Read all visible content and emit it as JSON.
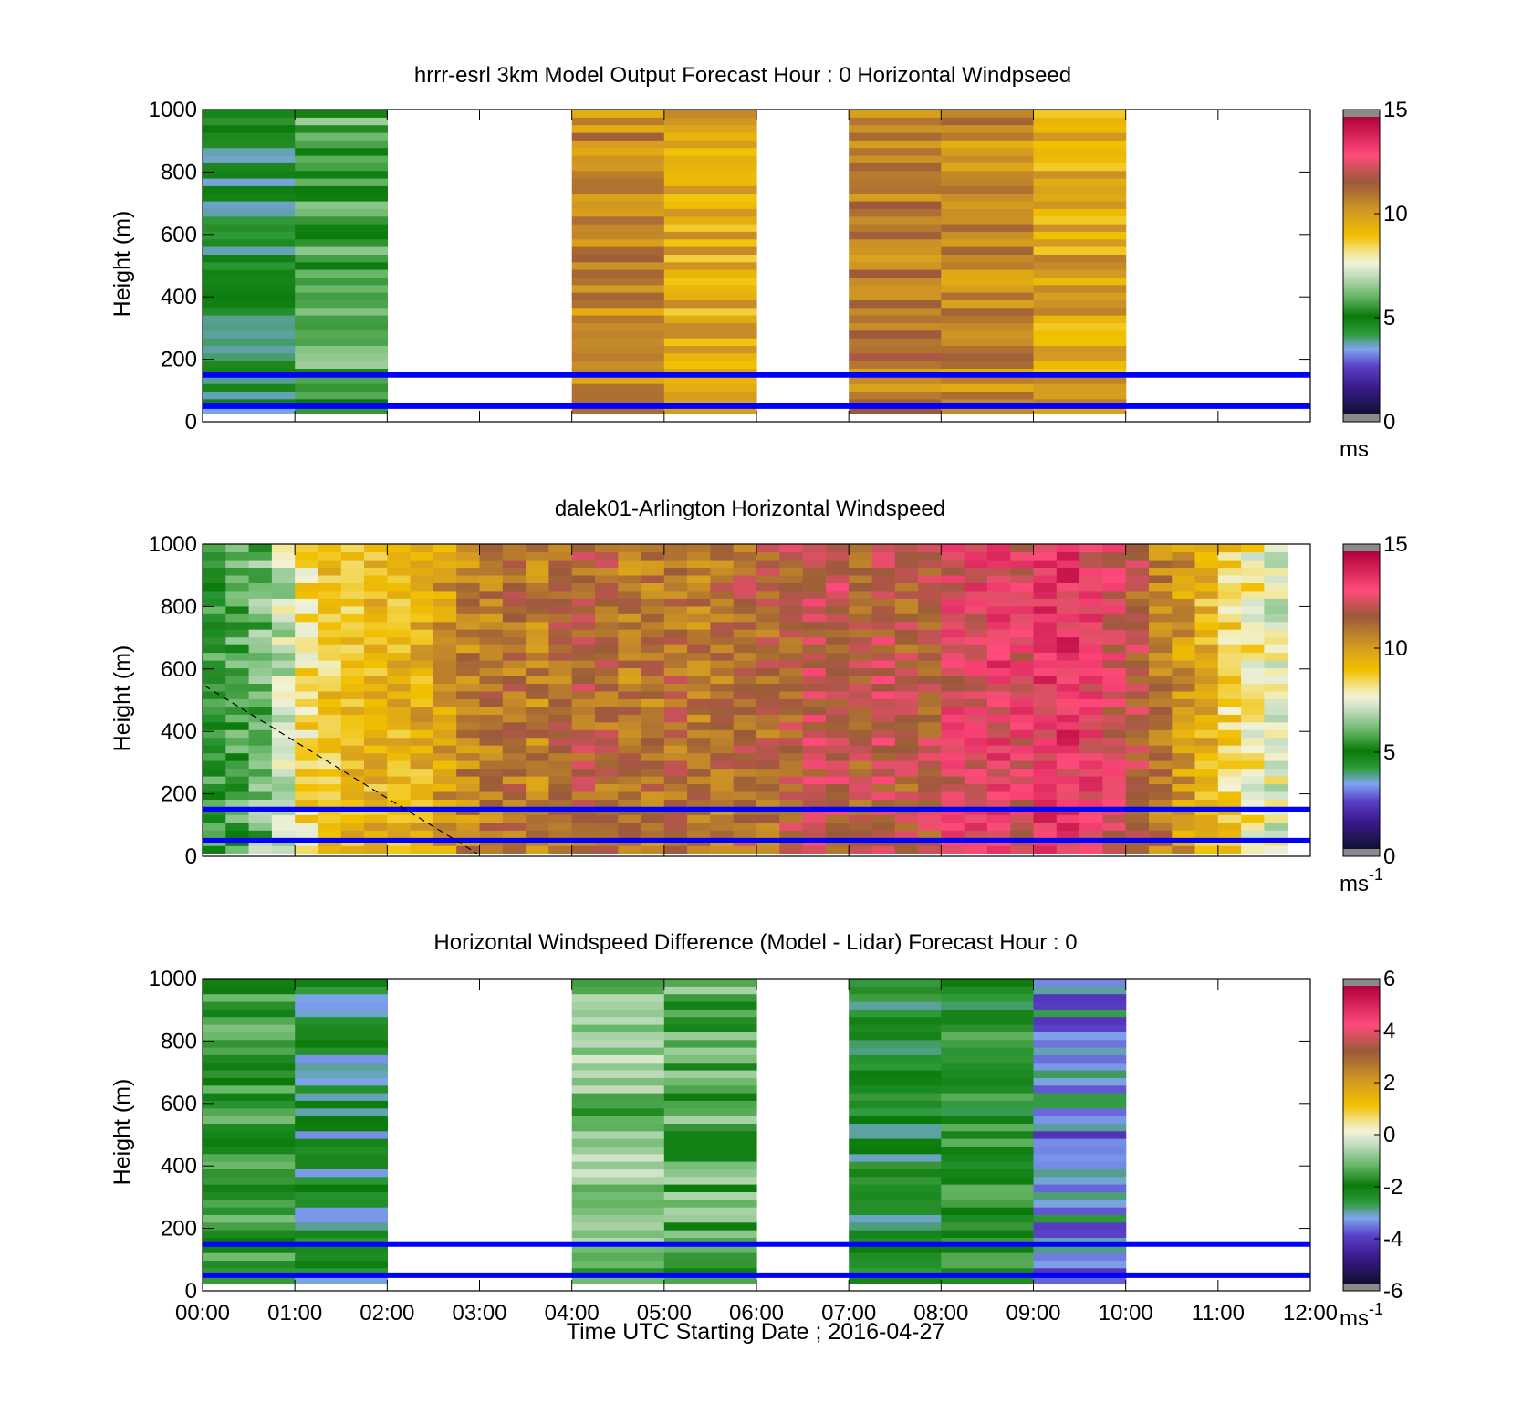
{
  "chart_data": [
    {
      "type": "heatmap",
      "title": "hrrr-esrl 3km Model Output   Forecast Hour : 0 Horizontal Windpseed",
      "ylabel": "Height (m)",
      "xlabel": "",
      "ylim": [
        0,
        1000
      ],
      "yticks": [
        "0",
        "200",
        "400",
        "600",
        "800",
        "1000"
      ],
      "xlim_hours": [
        0,
        12
      ],
      "xticks": [],
      "colorbar": {
        "min": 0,
        "max": 15,
        "ticks": [
          "0",
          "5",
          "10",
          "15"
        ],
        "unit": "ms",
        "unit_sup": "",
        "palette": "speed"
      },
      "reference_lines_m": [
        50,
        150
      ],
      "columns": [
        {
          "t0": 0,
          "t1": 1,
          "z0": 25,
          "z1": 1000,
          "value": 4.4
        },
        {
          "t0": 1,
          "t1": 2,
          "z0": 25,
          "z1": 1000,
          "value": 5.8
        },
        {
          "t0": 4,
          "t1": 5,
          "z0": 25,
          "z1": 1000,
          "value": 10.6
        },
        {
          "t0": 5,
          "t1": 6,
          "z0": 25,
          "z1": 1000,
          "value": 9.6
        },
        {
          "t0": 7,
          "t1": 8,
          "z0": 25,
          "z1": 1000,
          "value": 10.9
        },
        {
          "t0": 8,
          "t1": 9,
          "z0": 25,
          "z1": 1000,
          "value": 10.5
        },
        {
          "t0": 9,
          "t1": 10,
          "z0": 25,
          "z1": 1000,
          "value": 9.8
        }
      ]
    },
    {
      "type": "heatmap",
      "title": "dalek01-Arlington  Horizontal Windspeed",
      "ylabel": "Height (m)",
      "xlabel": "",
      "ylim": [
        0,
        1000
      ],
      "yticks": [
        "0",
        "200",
        "400",
        "600",
        "800",
        "1000"
      ],
      "xlim_hours": [
        0,
        12
      ],
      "xticks": [],
      "colorbar": {
        "min": 0,
        "max": 15,
        "ticks": [
          "0",
          "5",
          "10",
          "15"
        ],
        "unit": "ms",
        "unit_sup": "-1",
        "palette": "speed"
      },
      "reference_lines_m": [
        50,
        150
      ],
      "columns": [
        {
          "t0": 0.0,
          "t1": 0.25,
          "z0": 10,
          "z1": 1000,
          "value": 5.2
        },
        {
          "t0": 0.25,
          "t1": 0.5,
          "z0": 10,
          "z1": 1000,
          "value": 5.6
        },
        {
          "t0": 0.5,
          "t1": 0.75,
          "z0": 10,
          "z1": 1000,
          "value": 6.2
        },
        {
          "t0": 0.75,
          "t1": 1.0,
          "z0": 10,
          "z1": 1000,
          "value": 7.1
        },
        {
          "t0": 1.0,
          "t1": 1.25,
          "z0": 10,
          "z1": 1000,
          "value": 8.4
        },
        {
          "t0": 1.25,
          "t1": 1.5,
          "z0": 10,
          "z1": 1000,
          "value": 8.9
        },
        {
          "t0": 1.5,
          "t1": 1.75,
          "z0": 10,
          "z1": 1000,
          "value": 9.2
        },
        {
          "t0": 1.75,
          "t1": 2.0,
          "z0": 10,
          "z1": 1000,
          "value": 9.4
        },
        {
          "t0": 2.0,
          "t1": 2.25,
          "z0": 10,
          "z1": 1000,
          "value": 9.3
        },
        {
          "t0": 2.25,
          "t1": 2.5,
          "z0": 10,
          "z1": 1000,
          "value": 9.6
        },
        {
          "t0": 2.5,
          "t1": 2.75,
          "z0": 10,
          "z1": 1000,
          "value": 10.1
        },
        {
          "t0": 2.75,
          "t1": 3.0,
          "z0": 10,
          "z1": 1000,
          "value": 10.6
        },
        {
          "t0": 3.0,
          "t1": 3.25,
          "z0": 10,
          "z1": 1000,
          "value": 11.0
        },
        {
          "t0": 3.25,
          "t1": 3.5,
          "z0": 10,
          "z1": 1000,
          "value": 11.2
        },
        {
          "t0": 3.5,
          "t1": 3.75,
          "z0": 10,
          "z1": 1000,
          "value": 10.8
        },
        {
          "t0": 3.75,
          "t1": 4.0,
          "z0": 10,
          "z1": 1000,
          "value": 11.3
        },
        {
          "t0": 4.0,
          "t1": 4.25,
          "z0": 10,
          "z1": 1000,
          "value": 11.6
        },
        {
          "t0": 4.25,
          "t1": 4.5,
          "z0": 10,
          "z1": 1000,
          "value": 11.4
        },
        {
          "t0": 4.5,
          "t1": 4.75,
          "z0": 10,
          "z1": 1000,
          "value": 10.9
        },
        {
          "t0": 4.75,
          "t1": 5.0,
          "z0": 10,
          "z1": 1000,
          "value": 11.1
        },
        {
          "t0": 5.0,
          "t1": 5.25,
          "z0": 10,
          "z1": 1000,
          "value": 11.3
        },
        {
          "t0": 5.25,
          "t1": 5.5,
          "z0": 10,
          "z1": 1000,
          "value": 10.9
        },
        {
          "t0": 5.5,
          "t1": 5.75,
          "z0": 10,
          "z1": 1000,
          "value": 11.2
        },
        {
          "t0": 5.75,
          "t1": 6.0,
          "z0": 10,
          "z1": 1000,
          "value": 11.5
        },
        {
          "t0": 6.0,
          "t1": 6.25,
          "z0": 10,
          "z1": 1000,
          "value": 11.4
        },
        {
          "t0": 6.25,
          "t1": 6.5,
          "z0": 10,
          "z1": 1000,
          "value": 11.8
        },
        {
          "t0": 6.5,
          "t1": 6.75,
          "z0": 10,
          "z1": 1000,
          "value": 12.2
        },
        {
          "t0": 6.75,
          "t1": 7.0,
          "z0": 10,
          "z1": 1000,
          "value": 12.0
        },
        {
          "t0": 7.0,
          "t1": 7.25,
          "z0": 10,
          "z1": 1000,
          "value": 11.6
        },
        {
          "t0": 7.25,
          "t1": 7.5,
          "z0": 10,
          "z1": 1000,
          "value": 12.1
        },
        {
          "t0": 7.5,
          "t1": 7.75,
          "z0": 10,
          "z1": 1000,
          "value": 11.7
        },
        {
          "t0": 7.75,
          "t1": 8.0,
          "z0": 10,
          "z1": 1000,
          "value": 11.9
        },
        {
          "t0": 8.0,
          "t1": 8.25,
          "z0": 10,
          "z1": 1000,
          "value": 12.7
        },
        {
          "t0": 8.25,
          "t1": 8.5,
          "z0": 10,
          "z1": 1000,
          "value": 12.9
        },
        {
          "t0": 8.5,
          "t1": 8.75,
          "z0": 10,
          "z1": 1000,
          "value": 13.1
        },
        {
          "t0": 8.75,
          "t1": 9.0,
          "z0": 10,
          "z1": 1000,
          "value": 12.8
        },
        {
          "t0": 9.0,
          "t1": 9.25,
          "z0": 10,
          "z1": 1000,
          "value": 13.3
        },
        {
          "t0": 9.25,
          "t1": 9.5,
          "z0": 10,
          "z1": 1000,
          "value": 13.4
        },
        {
          "t0": 9.5,
          "t1": 9.75,
          "z0": 10,
          "z1": 1000,
          "value": 13.0
        },
        {
          "t0": 9.75,
          "t1": 10.0,
          "z0": 10,
          "z1": 1000,
          "value": 12.4
        },
        {
          "t0": 10.0,
          "t1": 10.25,
          "z0": 10,
          "z1": 1000,
          "value": 11.8
        },
        {
          "t0": 10.25,
          "t1": 10.5,
          "z0": 10,
          "z1": 1000,
          "value": 10.9
        },
        {
          "t0": 10.5,
          "t1": 10.75,
          "z0": 10,
          "z1": 1000,
          "value": 10.2
        },
        {
          "t0": 10.75,
          "t1": 11.0,
          "z0": 10,
          "z1": 1000,
          "value": 9.4
        },
        {
          "t0": 11.0,
          "t1": 11.25,
          "z0": 10,
          "z1": 1000,
          "value": 8.6
        },
        {
          "t0": 11.25,
          "t1": 11.5,
          "z0": 10,
          "z1": 1000,
          "value": 8.0
        },
        {
          "t0": 11.5,
          "t1": 11.75,
          "z0": 10,
          "z1": 1000,
          "value": 7.5
        }
      ]
    },
    {
      "type": "heatmap",
      "title": "Horizontal Windspeed Difference (Model - Lidar) Forecast Hour : 0",
      "ylabel": "Height (m)",
      "xlabel": "Time UTC  Starting Date ; 2016-04-27",
      "ylim": [
        0,
        1000
      ],
      "yticks": [
        "0",
        "200",
        "400",
        "600",
        "800",
        "1000"
      ],
      "xlim_hours": [
        0,
        12
      ],
      "xticks": [
        "00:00",
        "01:00",
        "02:00",
        "03:00",
        "04:00",
        "05:00",
        "06:00",
        "07:00",
        "08:00",
        "09:00",
        "10:00",
        "11:00",
        "12:00"
      ],
      "colorbar": {
        "min": -6,
        "max": 6,
        "ticks": [
          "-6",
          "-4",
          "-2",
          "0",
          "2",
          "4",
          "6"
        ],
        "unit": "ms",
        "unit_sup": "-1",
        "palette": "diff"
      },
      "reference_lines_m": [
        50,
        150
      ],
      "columns": [
        {
          "t0": 0,
          "t1": 1,
          "z0": 25,
          "z1": 1000,
          "value": -1.8
        },
        {
          "t0": 1,
          "t1": 2,
          "z0": 25,
          "z1": 1000,
          "value": -2.7
        },
        {
          "t0": 4,
          "t1": 5,
          "z0": 25,
          "z1": 1000,
          "value": -1.0
        },
        {
          "t0": 5,
          "t1": 6,
          "z0": 25,
          "z1": 1000,
          "value": -1.4
        },
        {
          "t0": 7,
          "t1": 8,
          "z0": 25,
          "z1": 1000,
          "value": -2.4
        },
        {
          "t0": 8,
          "t1": 9,
          "z0": 25,
          "z1": 1000,
          "value": -2.1
        },
        {
          "t0": 9,
          "t1": 10,
          "z0": 25,
          "z1": 1000,
          "value": -3.5
        }
      ]
    }
  ]
}
